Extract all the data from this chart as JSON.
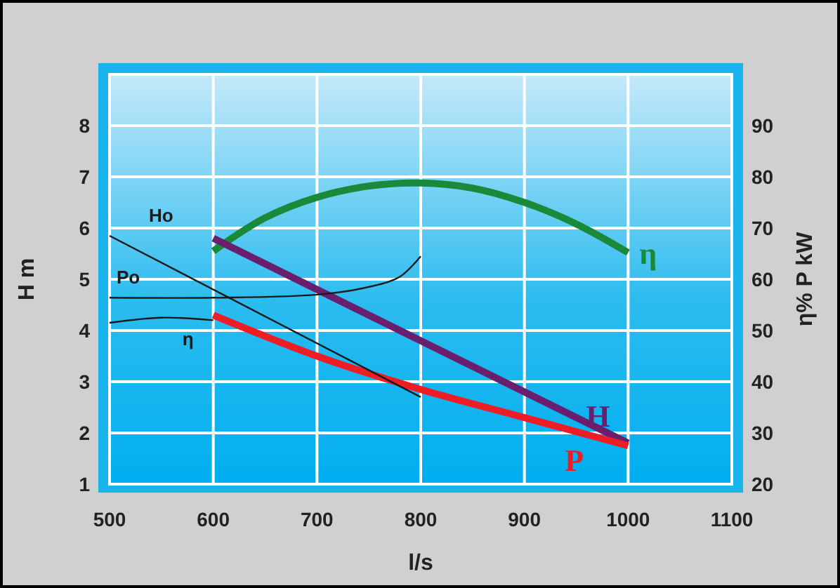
{
  "chart_data": {
    "type": "line",
    "xlabel": "l/s",
    "ylabel": "H m",
    "y2label": "η% P kW",
    "xlim": [
      500,
      1100
    ],
    "xticks": [
      500,
      600,
      700,
      800,
      900,
      1000,
      1100
    ],
    "ylim": [
      1,
      9
    ],
    "yticks": [
      1,
      2,
      3,
      4,
      5,
      6,
      7,
      8
    ],
    "y2lim": [
      20,
      100
    ],
    "y2ticks": [
      20,
      30,
      40,
      50,
      60,
      70,
      80,
      90
    ],
    "grid": true,
    "marker": "none",
    "line_style": "solid",
    "series": [
      {
        "name": "η",
        "color": "#1a8a3a",
        "axis": "y2",
        "x": [
          600,
          650,
          700,
          750,
          800,
          850,
          900,
          950,
          1000
        ],
        "values": [
          65.5,
          72,
          76,
          78.2,
          78.8,
          77.8,
          75,
          70.8,
          65.2
        ]
      },
      {
        "name": "H",
        "color": "#6a1f6e",
        "axis": "y",
        "x": [
          600,
          1000
        ],
        "values": [
          5.8,
          1.8
        ]
      },
      {
        "name": "P",
        "color": "#ee1c25",
        "axis": "y2",
        "x": [
          600,
          700,
          800,
          900,
          1000
        ],
        "values": [
          53,
          45,
          38.5,
          33,
          27.5
        ]
      },
      {
        "name": "Ho",
        "color": "#1a1a1a",
        "axis": "y",
        "x": [
          500,
          800
        ],
        "values": [
          5.85,
          2.7
        ]
      },
      {
        "name": "Po",
        "color": "#1a1a1a",
        "axis": "y2",
        "x": [
          500,
          600,
          700,
          750,
          780,
          800
        ],
        "values": [
          56.4,
          56.4,
          57,
          58.5,
          60.5,
          64.5
        ]
      },
      {
        "name": "η",
        "color": "#1a1a1a",
        "axis": "y2",
        "x": [
          500,
          550,
          600
        ],
        "values": [
          51.5,
          52.5,
          52
        ]
      }
    ]
  }
}
